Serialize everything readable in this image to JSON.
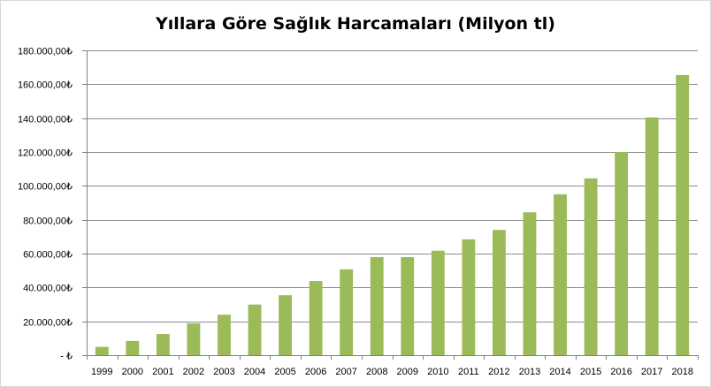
{
  "chart_data": {
    "type": "bar",
    "title": "Yıllara Göre Sağlık Harcamaları (Milyon tl)",
    "xlabel": "",
    "ylabel": "",
    "categories": [
      "1999",
      "2000",
      "2001",
      "2002",
      "2003",
      "2004",
      "2005",
      "2006",
      "2007",
      "2008",
      "2009",
      "2010",
      "2011",
      "2012",
      "2013",
      "2014",
      "2015",
      "2016",
      "2017",
      "2018"
    ],
    "values": [
      4900,
      8400,
      12500,
      18800,
      23900,
      29900,
      35400,
      43800,
      50700,
      57900,
      57900,
      61700,
      68400,
      74000,
      84400,
      95000,
      104400,
      120000,
      140400,
      165400
    ],
    "ylim": [
      0,
      180000
    ],
    "yticks": [
      0,
      20000,
      40000,
      60000,
      80000,
      100000,
      120000,
      140000,
      160000,
      180000
    ],
    "ytick_labels": [
      "-  ₺",
      "20.000,00₺",
      "40.000,00₺",
      "60.000,00₺",
      "80.000,00₺",
      "100.000,00₺",
      "120.000,00₺",
      "140.000,00₺",
      "160.000,00₺",
      "180.000,00₺"
    ],
    "grid": true,
    "legend": "none",
    "colors": {
      "bar": "#9BBB59",
      "grid": "#8c8c8c",
      "axis": "#808080"
    }
  }
}
